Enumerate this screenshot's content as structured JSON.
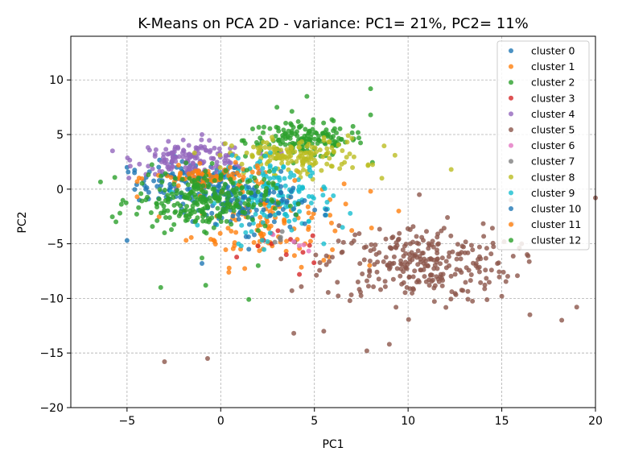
{
  "chart_data": {
    "type": "scatter",
    "title": "K-Means on PCA 2D - variance: PC1= 21%, PC2= 11%",
    "xlabel": "PC1",
    "ylabel": "PC2",
    "xlim": [
      -8,
      20
    ],
    "ylim": [
      -20,
      14
    ],
    "x_ticks": [
      "−5",
      "0",
      "5",
      "10",
      "15",
      "20"
    ],
    "x_tick_values": [
      -5,
      0,
      5,
      10,
      15,
      20
    ],
    "y_ticks": [
      "10",
      "5",
      "0",
      "−5",
      "−10",
      "−15",
      "−20"
    ],
    "y_tick_values": [
      10,
      5,
      0,
      -5,
      -10,
      -15,
      -20
    ],
    "grid": true,
    "legend_position": "top-right",
    "series": [
      {
        "name": "cluster 0",
        "color": "#1f77b4",
        "center": [
          -1.5,
          0.5
        ],
        "spread": [
          1.5,
          1.0
        ],
        "count": 140,
        "points": [
          [
            -5.0,
            2.0
          ],
          [
            -4.6,
            1.5
          ],
          [
            -5.0,
            -4.7
          ],
          [
            -4.0,
            0.0
          ]
        ]
      },
      {
        "name": "cluster 1",
        "color": "#ff7f0e",
        "center": [
          2.5,
          -3.0
        ],
        "spread": [
          2.0,
          2.0
        ],
        "count": 110,
        "points": [
          [
            9.5,
            -2.0
          ],
          [
            8.0,
            -0.2
          ],
          [
            5.5,
            -6.5
          ],
          [
            4.5,
            -5.0
          ]
        ]
      },
      {
        "name": "cluster 2",
        "color": "#2ca02c",
        "center": [
          4.5,
          4.5
        ],
        "spread": [
          1.6,
          0.8
        ],
        "count": 160,
        "points": [
          [
            8.0,
            9.2
          ],
          [
            4.6,
            8.5
          ],
          [
            3.0,
            7.5
          ],
          [
            8.0,
            6.8
          ]
        ]
      },
      {
        "name": "cluster 3",
        "color": "#d62728",
        "center": [
          3.5,
          -5.5
        ],
        "spread": [
          1.0,
          0.8
        ],
        "count": 10,
        "points": [
          [
            4.2,
            -7.8
          ],
          [
            3.5,
            -6.0
          ],
          [
            2.3,
            -4.7
          ]
        ]
      },
      {
        "name": "cluster 4",
        "color": "#9467bd",
        "center": [
          -1.5,
          2.8
        ],
        "spread": [
          1.5,
          0.7
        ],
        "count": 140,
        "points": [
          [
            -2.0,
            4.5
          ],
          [
            -3.5,
            3.2
          ],
          [
            -1.0,
            5.0
          ]
        ]
      },
      {
        "name": "cluster 5",
        "color": "#8c564b",
        "center": [
          10.5,
          -6.8
        ],
        "spread": [
          2.5,
          1.8
        ],
        "count": 280,
        "points": [
          [
            20.0,
            -0.8
          ],
          [
            19.0,
            -10.8
          ],
          [
            -3.0,
            -15.8
          ],
          [
            -0.7,
            -15.5
          ],
          [
            3.9,
            -13.2
          ],
          [
            5.5,
            -13.0
          ],
          [
            7.8,
            -14.8
          ],
          [
            9.0,
            -14.2
          ],
          [
            16.5,
            -11.5
          ],
          [
            18.2,
            -12.0
          ],
          [
            15.0,
            -9.8
          ],
          [
            3.8,
            -9.3
          ],
          [
            15.5,
            -1.0
          ],
          [
            10.6,
            -0.5
          ]
        ]
      },
      {
        "name": "cluster 6",
        "color": "#e377c2",
        "center": [
          4.0,
          -5.0
        ],
        "spread": [
          0.6,
          0.6
        ],
        "count": 4,
        "points": [
          [
            3.9,
            -4.8
          ]
        ]
      },
      {
        "name": "cluster 7",
        "color": "#7f7f7f",
        "center": [
          3.0,
          -4.5
        ],
        "spread": [
          0.6,
          0.6
        ],
        "count": 4,
        "points": [
          [
            3.2,
            -4.4
          ]
        ]
      },
      {
        "name": "cluster 8",
        "color": "#bcbd22",
        "center": [
          4.0,
          3.0
        ],
        "spread": [
          1.8,
          0.8
        ],
        "count": 150,
        "points": [
          [
            12.3,
            1.8
          ],
          [
            9.3,
            3.1
          ],
          [
            8.6,
            1.0
          ],
          [
            6.8,
            4.9
          ]
        ]
      },
      {
        "name": "cluster 9",
        "color": "#17becf",
        "center": [
          3.0,
          -0.5
        ],
        "spread": [
          1.5,
          1.6
        ],
        "count": 150,
        "points": [
          [
            5.5,
            -5.0
          ],
          [
            6.5,
            -3.5
          ],
          [
            2.5,
            -4.8
          ]
        ]
      },
      {
        "name": "cluster 10",
        "color": "#1f77b4",
        "center": [
          1.5,
          -1.5
        ],
        "spread": [
          1.5,
          1.2
        ],
        "count": 100,
        "points": [
          [
            -1.0,
            -6.8
          ],
          [
            1.5,
            -5.5
          ]
        ]
      },
      {
        "name": "cluster 11",
        "color": "#ff7f0e",
        "center": [
          -0.5,
          1.0
        ],
        "spread": [
          1.5,
          0.5
        ],
        "count": 80,
        "points": [
          [
            0.5,
            2.0
          ],
          [
            -1.5,
            1.5
          ]
        ]
      },
      {
        "name": "cluster 12",
        "color": "#2ca02c",
        "center": [
          -1.0,
          -1.0
        ],
        "spread": [
          1.8,
          1.3
        ],
        "count": 260,
        "points": [
          [
            -3.2,
            -9.0
          ],
          [
            1.5,
            -10.1
          ],
          [
            -0.8,
            -8.8
          ],
          [
            -1.0,
            -6.3
          ],
          [
            -3.0,
            -4.0
          ],
          [
            2.0,
            -7.0
          ]
        ]
      }
    ]
  }
}
